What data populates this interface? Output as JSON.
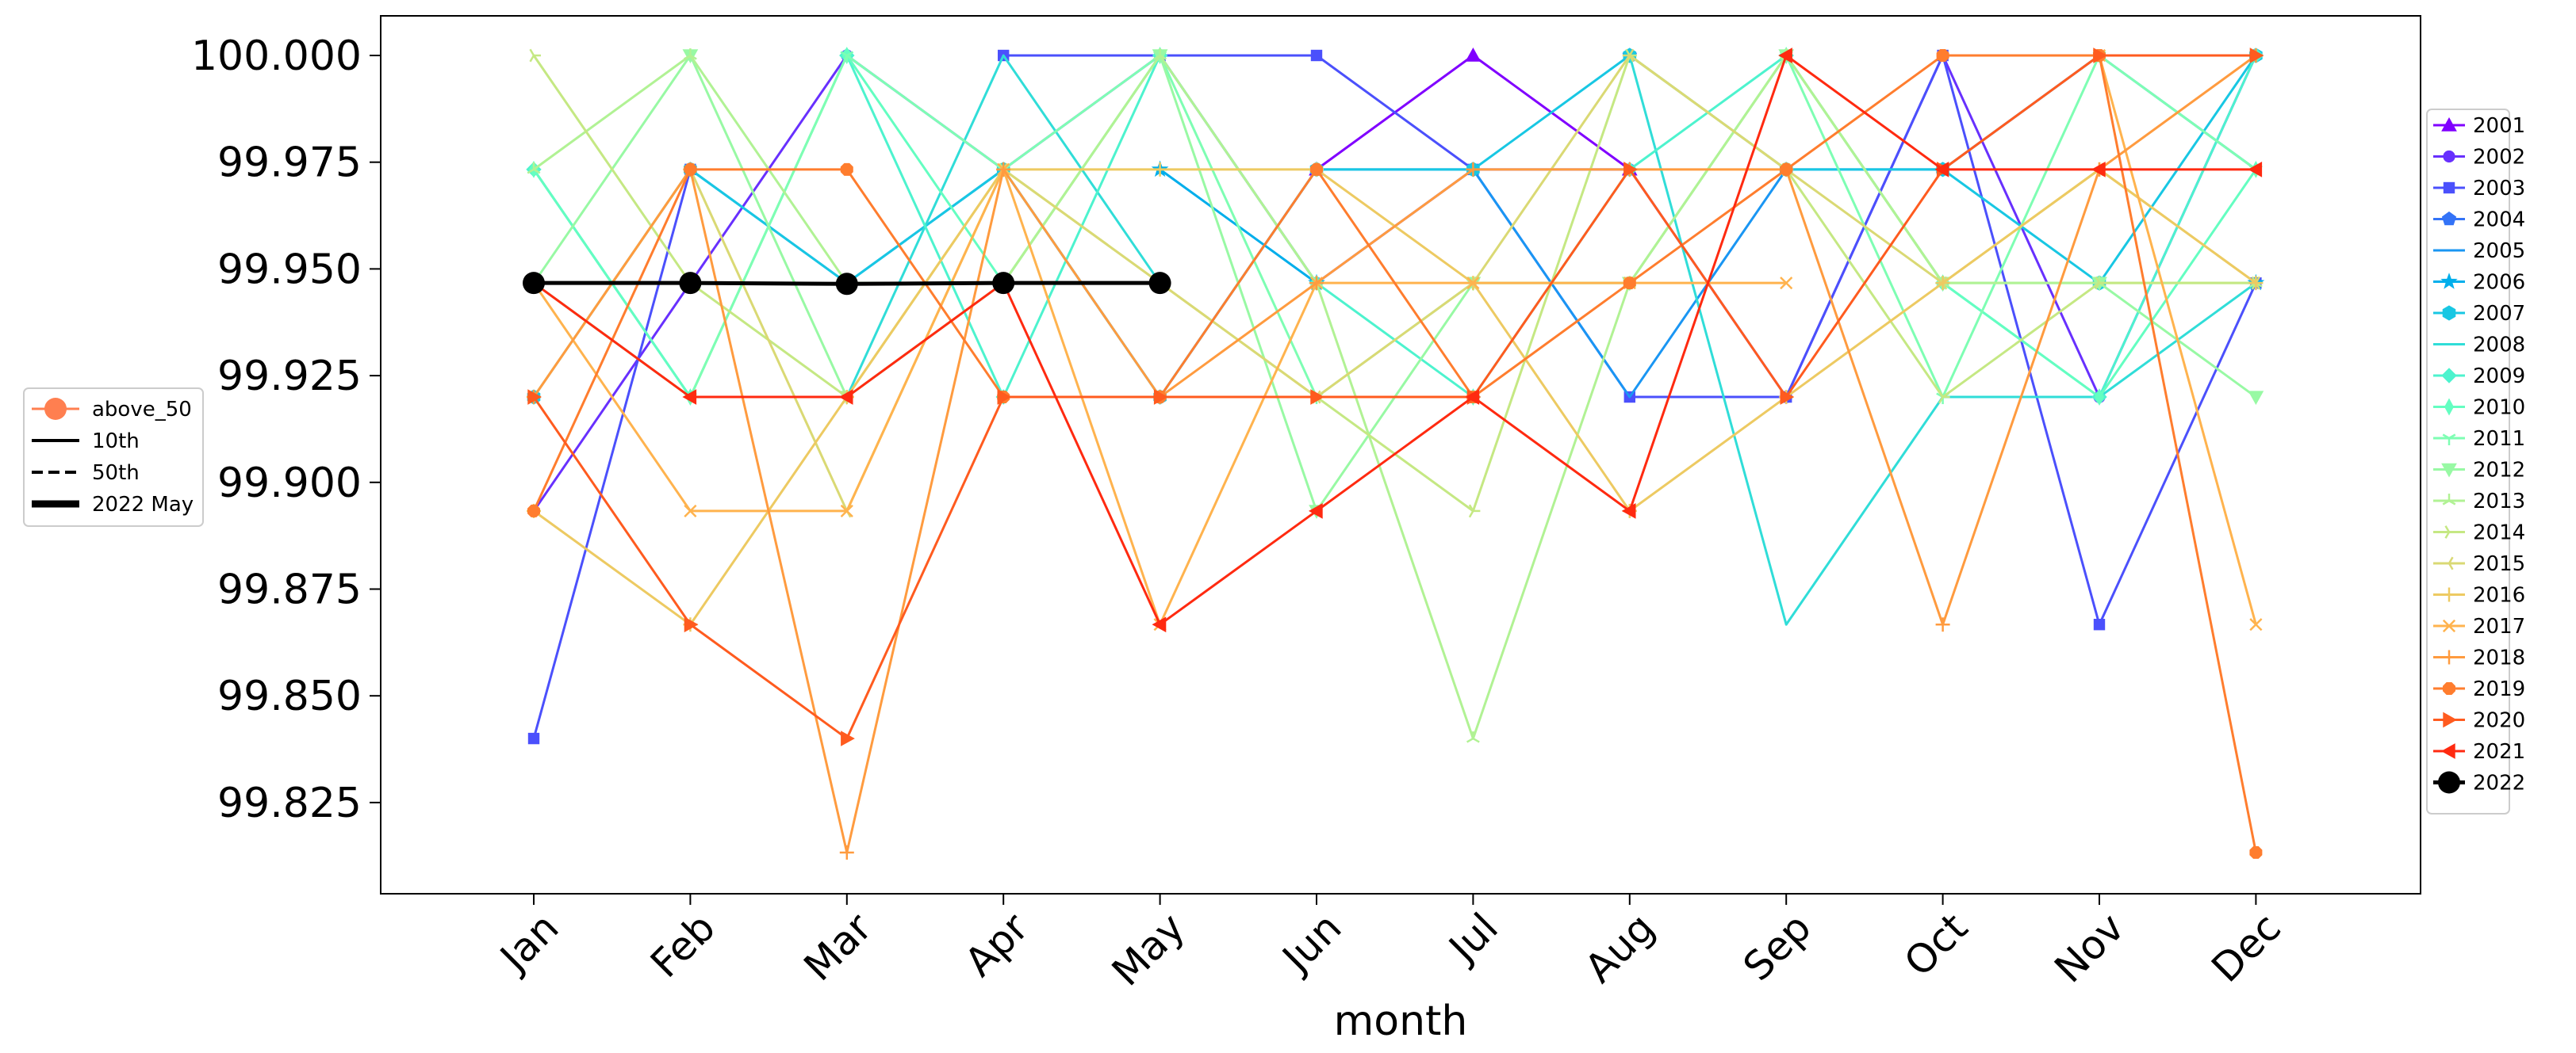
{
  "chart_data": {
    "type": "line",
    "title": "",
    "xlabel": "month",
    "ylabel": "",
    "categories": [
      "Jan",
      "Feb",
      "Mar",
      "Apr",
      "May",
      "Jun",
      "Jul",
      "Aug",
      "Sep",
      "Oct",
      "Nov",
      "Dec"
    ],
    "ylim": [
      99.8,
      100.01
    ],
    "yticks": [
      "100.000",
      "99.975",
      "99.950",
      "99.925",
      "99.900",
      "99.875",
      "99.850",
      "99.825"
    ],
    "grid": false,
    "series": [
      {
        "name": "2001",
        "color": "#8000ff",
        "marker": "triangle-up",
        "values": [
          null,
          null,
          null,
          null,
          null,
          99.9733,
          100.0,
          99.9733,
          null,
          null,
          null,
          null
        ]
      },
      {
        "name": "2002",
        "color": "#6830fe",
        "marker": "circle",
        "values": [
          99.8933,
          99.9467,
          100.0,
          99.9733,
          100.0,
          99.9467,
          99.9733,
          99.9733,
          99.92,
          100.0,
          99.92,
          100.0
        ]
      },
      {
        "name": "2003",
        "color": "#4b50fc",
        "marker": "square",
        "values": [
          99.84,
          99.9733,
          null,
          100.0,
          100.0,
          100.0,
          99.9733,
          99.92,
          99.92,
          100.0,
          99.8667,
          99.9467
        ]
      },
      {
        "name": "2004",
        "color": "#3373f7",
        "marker": "pentagon",
        "values": [
          null,
          null,
          null,
          null,
          null,
          null,
          null,
          100.0,
          null,
          null,
          null,
          null
        ]
      },
      {
        "name": "2005",
        "color": "#1a96f3",
        "marker": "none",
        "values": [
          null,
          99.9733,
          99.9467,
          99.9733,
          99.92,
          99.9733,
          99.9733,
          99.92,
          99.9733,
          99.9733,
          100.0,
          99.9733
        ]
      },
      {
        "name": "2006",
        "color": "#00aeeb",
        "marker": "star",
        "values": [
          null,
          null,
          null,
          null,
          99.9733,
          99.9467,
          null,
          null,
          null,
          null,
          null,
          99.9467
        ]
      },
      {
        "name": "2007",
        "color": "#18c7e3",
        "marker": "hexagon",
        "values": [
          99.92,
          99.9733,
          99.9467,
          99.9733,
          99.92,
          99.9733,
          99.9733,
          100.0,
          99.9733,
          99.9733,
          99.9467,
          100.0
        ]
      },
      {
        "name": "2008",
        "color": "#30ddd8",
        "marker": "none",
        "values": [
          99.9733,
          99.92,
          99.92,
          100.0,
          99.9467,
          null,
          null,
          100.0,
          99.8667,
          99.92,
          99.92,
          99.9467
        ]
      },
      {
        "name": "2009",
        "color": "#4df3ce",
        "marker": "diamond",
        "values": [
          99.9733,
          null,
          100.0,
          99.92,
          100.0,
          99.9467,
          99.92,
          99.9733,
          100.0,
          99.9467,
          99.92,
          100.0
        ]
      },
      {
        "name": "2010",
        "color": "#64fec1",
        "marker": "thin-diamond",
        "values": [
          99.9733,
          99.92,
          100.0,
          99.9467,
          100.0,
          null,
          99.92,
          null,
          100.0,
          99.9467,
          99.92,
          99.9733
        ]
      },
      {
        "name": "2011",
        "color": "#7efeb3",
        "marker": "tri-down",
        "values": [
          99.9467,
          99.92,
          100.0,
          99.9733,
          100.0,
          99.92,
          99.9467,
          99.9467,
          100.0,
          99.92,
          100.0,
          99.9733
        ]
      },
      {
        "name": "2012",
        "color": "#98f9a4",
        "marker": "triangle-down",
        "values": [
          99.9467,
          100.0,
          99.92,
          99.9467,
          100.0,
          99.8933,
          99.9467,
          99.9467,
          100.0,
          99.9467,
          99.9467,
          99.92
        ]
      },
      {
        "name": "2013",
        "color": "#b1f294",
        "marker": "tri-up",
        "values": [
          99.9733,
          100.0,
          99.9467,
          99.9467,
          100.0,
          99.9467,
          99.84,
          99.9467,
          100.0,
          99.9467,
          99.9467,
          99.9467
        ]
      },
      {
        "name": "2014",
        "color": "#c5e883",
        "marker": "tri-left",
        "values": [
          100.0,
          99.9467,
          99.92,
          99.9733,
          99.9467,
          99.92,
          99.8933,
          100.0,
          99.9733,
          99.92,
          99.9467,
          99.9467
        ]
      },
      {
        "name": "2015",
        "color": "#dad974",
        "marker": "tri-right",
        "values": [
          99.92,
          99.9733,
          99.8933,
          99.9733,
          99.9467,
          99.92,
          99.9467,
          100.0,
          99.9733,
          99.9467,
          99.9733,
          99.9467
        ]
      },
      {
        "name": "2016",
        "color": "#edca62",
        "marker": "plus",
        "values": [
          99.8933,
          99.8667,
          99.92,
          99.9733,
          99.9733,
          99.9733,
          99.9467,
          99.8933,
          99.92,
          99.9467,
          99.9733,
          99.9467
        ]
      },
      {
        "name": "2017",
        "color": "#ffb34e",
        "marker": "x",
        "values": [
          99.9467,
          99.8933,
          99.8933,
          99.9733,
          99.8667,
          99.9467,
          99.9467,
          99.9467,
          99.9467,
          null,
          100.0,
          99.8667
        ]
      },
      {
        "name": "2018",
        "color": "#ff9b3f",
        "marker": "plus",
        "values": [
          99.92,
          99.9733,
          99.8133,
          99.9733,
          99.92,
          99.9467,
          99.9733,
          99.9733,
          99.9733,
          99.8667,
          99.9733,
          100.0
        ]
      },
      {
        "name": "2019",
        "color": "#ff7d2e",
        "marker": "octagon",
        "values": [
          99.8933,
          99.9733,
          99.9733,
          99.92,
          99.92,
          99.9733,
          99.92,
          99.9467,
          99.9733,
          100.0,
          100.0,
          99.8133
        ]
      },
      {
        "name": "2020",
        "color": "#ff5b1f",
        "marker": "triangle-right",
        "values": [
          99.92,
          99.8667,
          99.84,
          99.92,
          99.92,
          99.92,
          99.92,
          99.9733,
          99.92,
          99.9733,
          100.0,
          100.0
        ]
      },
      {
        "name": "2021",
        "color": "#ff2a10",
        "marker": "triangle-left",
        "values": [
          99.9467,
          99.92,
          99.92,
          99.9467,
          99.8667,
          99.8933,
          99.92,
          99.8933,
          100.0,
          99.9733,
          99.9733,
          99.9733
        ]
      },
      {
        "name": "2022",
        "color": "#000000",
        "marker": "big-circle",
        "values": [
          99.9467,
          99.9467,
          99.9465,
          99.9467,
          99.9467,
          null,
          null,
          null,
          null,
          null,
          null,
          null
        ]
      }
    ],
    "legend_main": {
      "placement": "right"
    },
    "legend_secondary": {
      "placement": "left",
      "entries": [
        {
          "label": "above_50",
          "style": "marker",
          "color": "#ff7f50"
        },
        {
          "label": "10th",
          "style": "solid"
        },
        {
          "label": "50th",
          "style": "dashed"
        },
        {
          "label": "2022 May",
          "style": "thick"
        }
      ]
    }
  }
}
